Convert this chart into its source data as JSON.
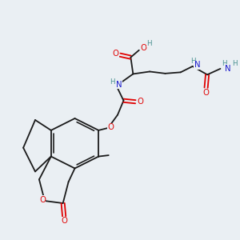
{
  "bg": "#eaeff3",
  "C": "#1a1a1a",
  "O": "#e00000",
  "N": "#1a1acc",
  "H": "#4a9090",
  "lw": 1.3,
  "fs": 6.8
}
